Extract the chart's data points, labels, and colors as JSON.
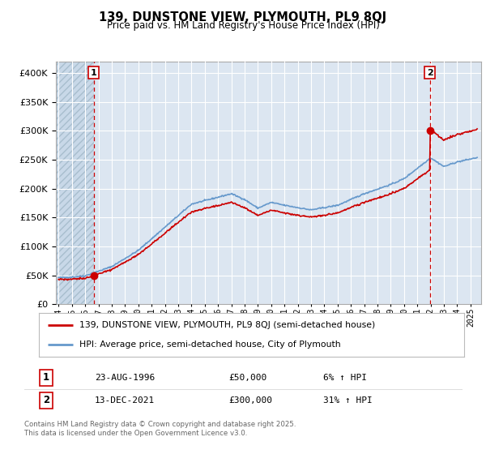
{
  "title": "139, DUNSTONE VIEW, PLYMOUTH, PL9 8QJ",
  "subtitle": "Price paid vs. HM Land Registry's House Price Index (HPI)",
  "legend_line1": "139, DUNSTONE VIEW, PLYMOUTH, PL9 8QJ (semi-detached house)",
  "legend_line2": "HPI: Average price, semi-detached house, City of Plymouth",
  "annotation1_date": "23-AUG-1996",
  "annotation1_price": "£50,000",
  "annotation1_hpi": "6% ↑ HPI",
  "annotation2_date": "13-DEC-2021",
  "annotation2_price": "£300,000",
  "annotation2_hpi": "31% ↑ HPI",
  "footer": "Contains HM Land Registry data © Crown copyright and database right 2025.\nThis data is licensed under the Open Government Licence v3.0.",
  "price_color": "#cc0000",
  "hpi_color": "#6699cc",
  "plot_bg": "#dce6f1",
  "ylim": [
    0,
    420000
  ],
  "yticks": [
    0,
    50000,
    100000,
    150000,
    200000,
    250000,
    300000,
    350000,
    400000
  ],
  "sale1_x": 1996.64,
  "sale1_y": 50000,
  "sale2_x": 2021.95,
  "sale2_y": 300000,
  "xmin": 1993.8,
  "xmax": 2025.8
}
